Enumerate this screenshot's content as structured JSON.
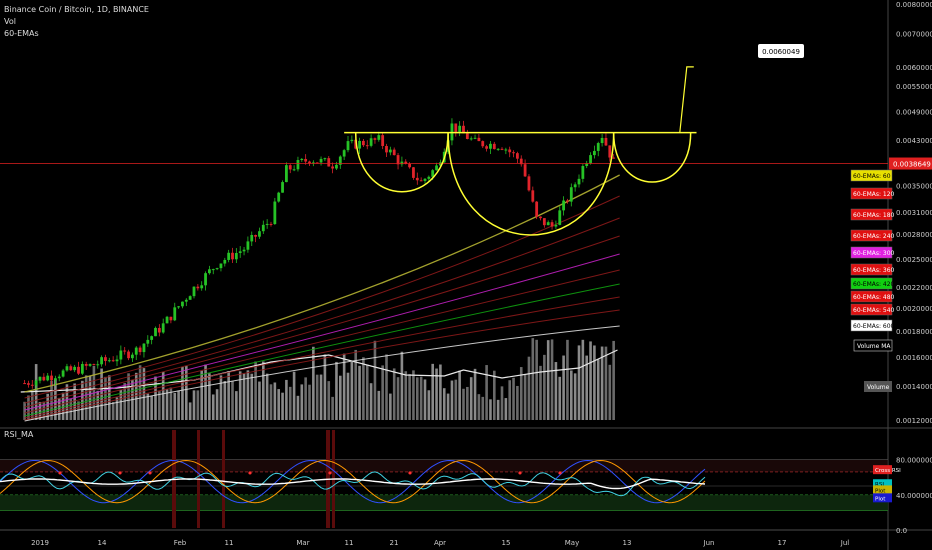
{
  "header": {
    "symbol_line": "Binance Coin / Bitcoin, 1D, BINANCE",
    "vol_label": "Vol",
    "ema_label": "60-EMAs"
  },
  "rsi_title": "RSI_MA",
  "colors": {
    "background": "#000000",
    "up_candle": "#26c226",
    "down_candle": "#e0242b",
    "pattern_line": "#ffff33",
    "price_line": "#e02020",
    "rsi_line": "#2196f3",
    "rsi_ma": "#ff9800"
  },
  "chart_data": {
    "type": "candlestick",
    "x_ticks": [
      "2019",
      "14",
      "Feb",
      "11",
      "Mar",
      "11",
      "21",
      "Apr",
      "15",
      "May",
      "13",
      "Jun",
      "17",
      "Jul"
    ],
    "y_ticks": [
      "0.0080000",
      "0.0070000",
      "0.0060000",
      "0.0055000",
      "0.0049000",
      "0.0043000",
      "0.0039000",
      "0.0035000",
      "0.0031000",
      "0.0028000",
      "0.0025000",
      "0.0022000",
      "0.0020000",
      "0.0018000",
      "0.0016000",
      "0.0014000",
      "0.0012000"
    ],
    "current_price": "0.0038649",
    "target_label": "0.0060049",
    "ema_labels": [
      {
        "text": "60-EMAs: 60",
        "color": "#e8e000",
        "text_color": "#000000"
      },
      {
        "text": "60-EMAs: 120",
        "color": "#e01010",
        "text_color": "#ffffff"
      },
      {
        "text": "60-EMAs: 180",
        "color": "#e01010",
        "text_color": "#ffffff"
      },
      {
        "text": "60-EMAs: 240",
        "color": "#e01010",
        "text_color": "#ffffff"
      },
      {
        "text": "60-EMAs: 300",
        "color": "#e020e0",
        "text_color": "#ffffff"
      },
      {
        "text": "60-EMAs: 360",
        "color": "#e01010",
        "text_color": "#ffffff"
      },
      {
        "text": "60-EMAs: 420",
        "color": "#10d010",
        "text_color": "#000000"
      },
      {
        "text": "60-EMAs: 480",
        "color": "#e01010",
        "text_color": "#ffffff"
      },
      {
        "text": "60-EMAs: 540",
        "color": "#e01010",
        "text_color": "#ffffff"
      },
      {
        "text": "60-EMAs: 600",
        "color": "#ffffff",
        "text_color": "#000000"
      }
    ],
    "volume_ma_label": "Volume MA",
    "volume_label": "Volume",
    "rsi_y_ticks": [
      "80.0000000",
      "40.0000000",
      "0.0"
    ],
    "rsi_labels": [
      "Cross RSI",
      "RSI",
      "Plot",
      "Plot"
    ],
    "close_path": [
      [
        "2018-12-28",
        0.00142
      ],
      [
        "2019-01-05",
        0.00148
      ],
      [
        "2019-01-12",
        0.00152
      ],
      [
        "2019-01-19",
        0.00158
      ],
      [
        "2019-01-26",
        0.00165
      ],
      [
        "2019-02-02",
        0.00185
      ],
      [
        "2019-02-09",
        0.00215
      ],
      [
        "2019-02-16",
        0.00245
      ],
      [
        "2019-02-23",
        0.00262
      ],
      [
        "2019-03-02",
        0.003
      ],
      [
        "2019-03-06",
        0.00375
      ],
      [
        "2019-03-12",
        0.00395
      ],
      [
        "2019-03-18",
        0.00385
      ],
      [
        "2019-03-22",
        0.0042
      ],
      [
        "2019-03-30",
        0.0043
      ],
      [
        "2019-04-05",
        0.00385
      ],
      [
        "2019-04-10",
        0.00355
      ],
      [
        "2019-04-14",
        0.0038
      ],
      [
        "2019-04-18",
        0.0046
      ],
      [
        "2019-04-24",
        0.00425
      ],
      [
        "2019-05-01",
        0.0042
      ],
      [
        "2019-05-06",
        0.0039
      ],
      [
        "2019-05-10",
        0.003
      ],
      [
        "2019-05-14",
        0.0029
      ],
      [
        "2019-05-19",
        0.0034
      ],
      [
        "2019-05-24",
        0.0041
      ],
      [
        "2019-05-27",
        0.0044
      ],
      [
        "2019-05-30",
        0.00388
      ]
    ]
  }
}
